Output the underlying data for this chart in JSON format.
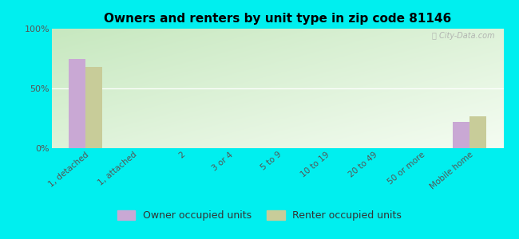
{
  "title": "Owners and renters by unit type in zip code 81146",
  "categories": [
    "1, detached",
    "1, attached",
    "2",
    "3 or 4",
    "5 to 9",
    "10 to 19",
    "20 to 49",
    "50 or more",
    "Mobile home"
  ],
  "owner_values": [
    75,
    0,
    0,
    0,
    0,
    0,
    0,
    0,
    22
  ],
  "renter_values": [
    68,
    0,
    0,
    0,
    0,
    0,
    0,
    0,
    27
  ],
  "owner_color": "#c9a8d4",
  "renter_color": "#c8cc99",
  "ylim": [
    0,
    100
  ],
  "yticks": [
    0,
    50,
    100
  ],
  "ytick_labels": [
    "0%",
    "50%",
    "100%"
  ],
  "bar_width": 0.35,
  "bg_color_tl": "#c8e6c0",
  "bg_color_tr": "#e8f5e0",
  "bg_color_b": "#f5fdf2",
  "outer_bg": "#00efef",
  "legend_owner": "Owner occupied units",
  "legend_renter": "Renter occupied units",
  "watermark": "ⓘ City-Data.com"
}
